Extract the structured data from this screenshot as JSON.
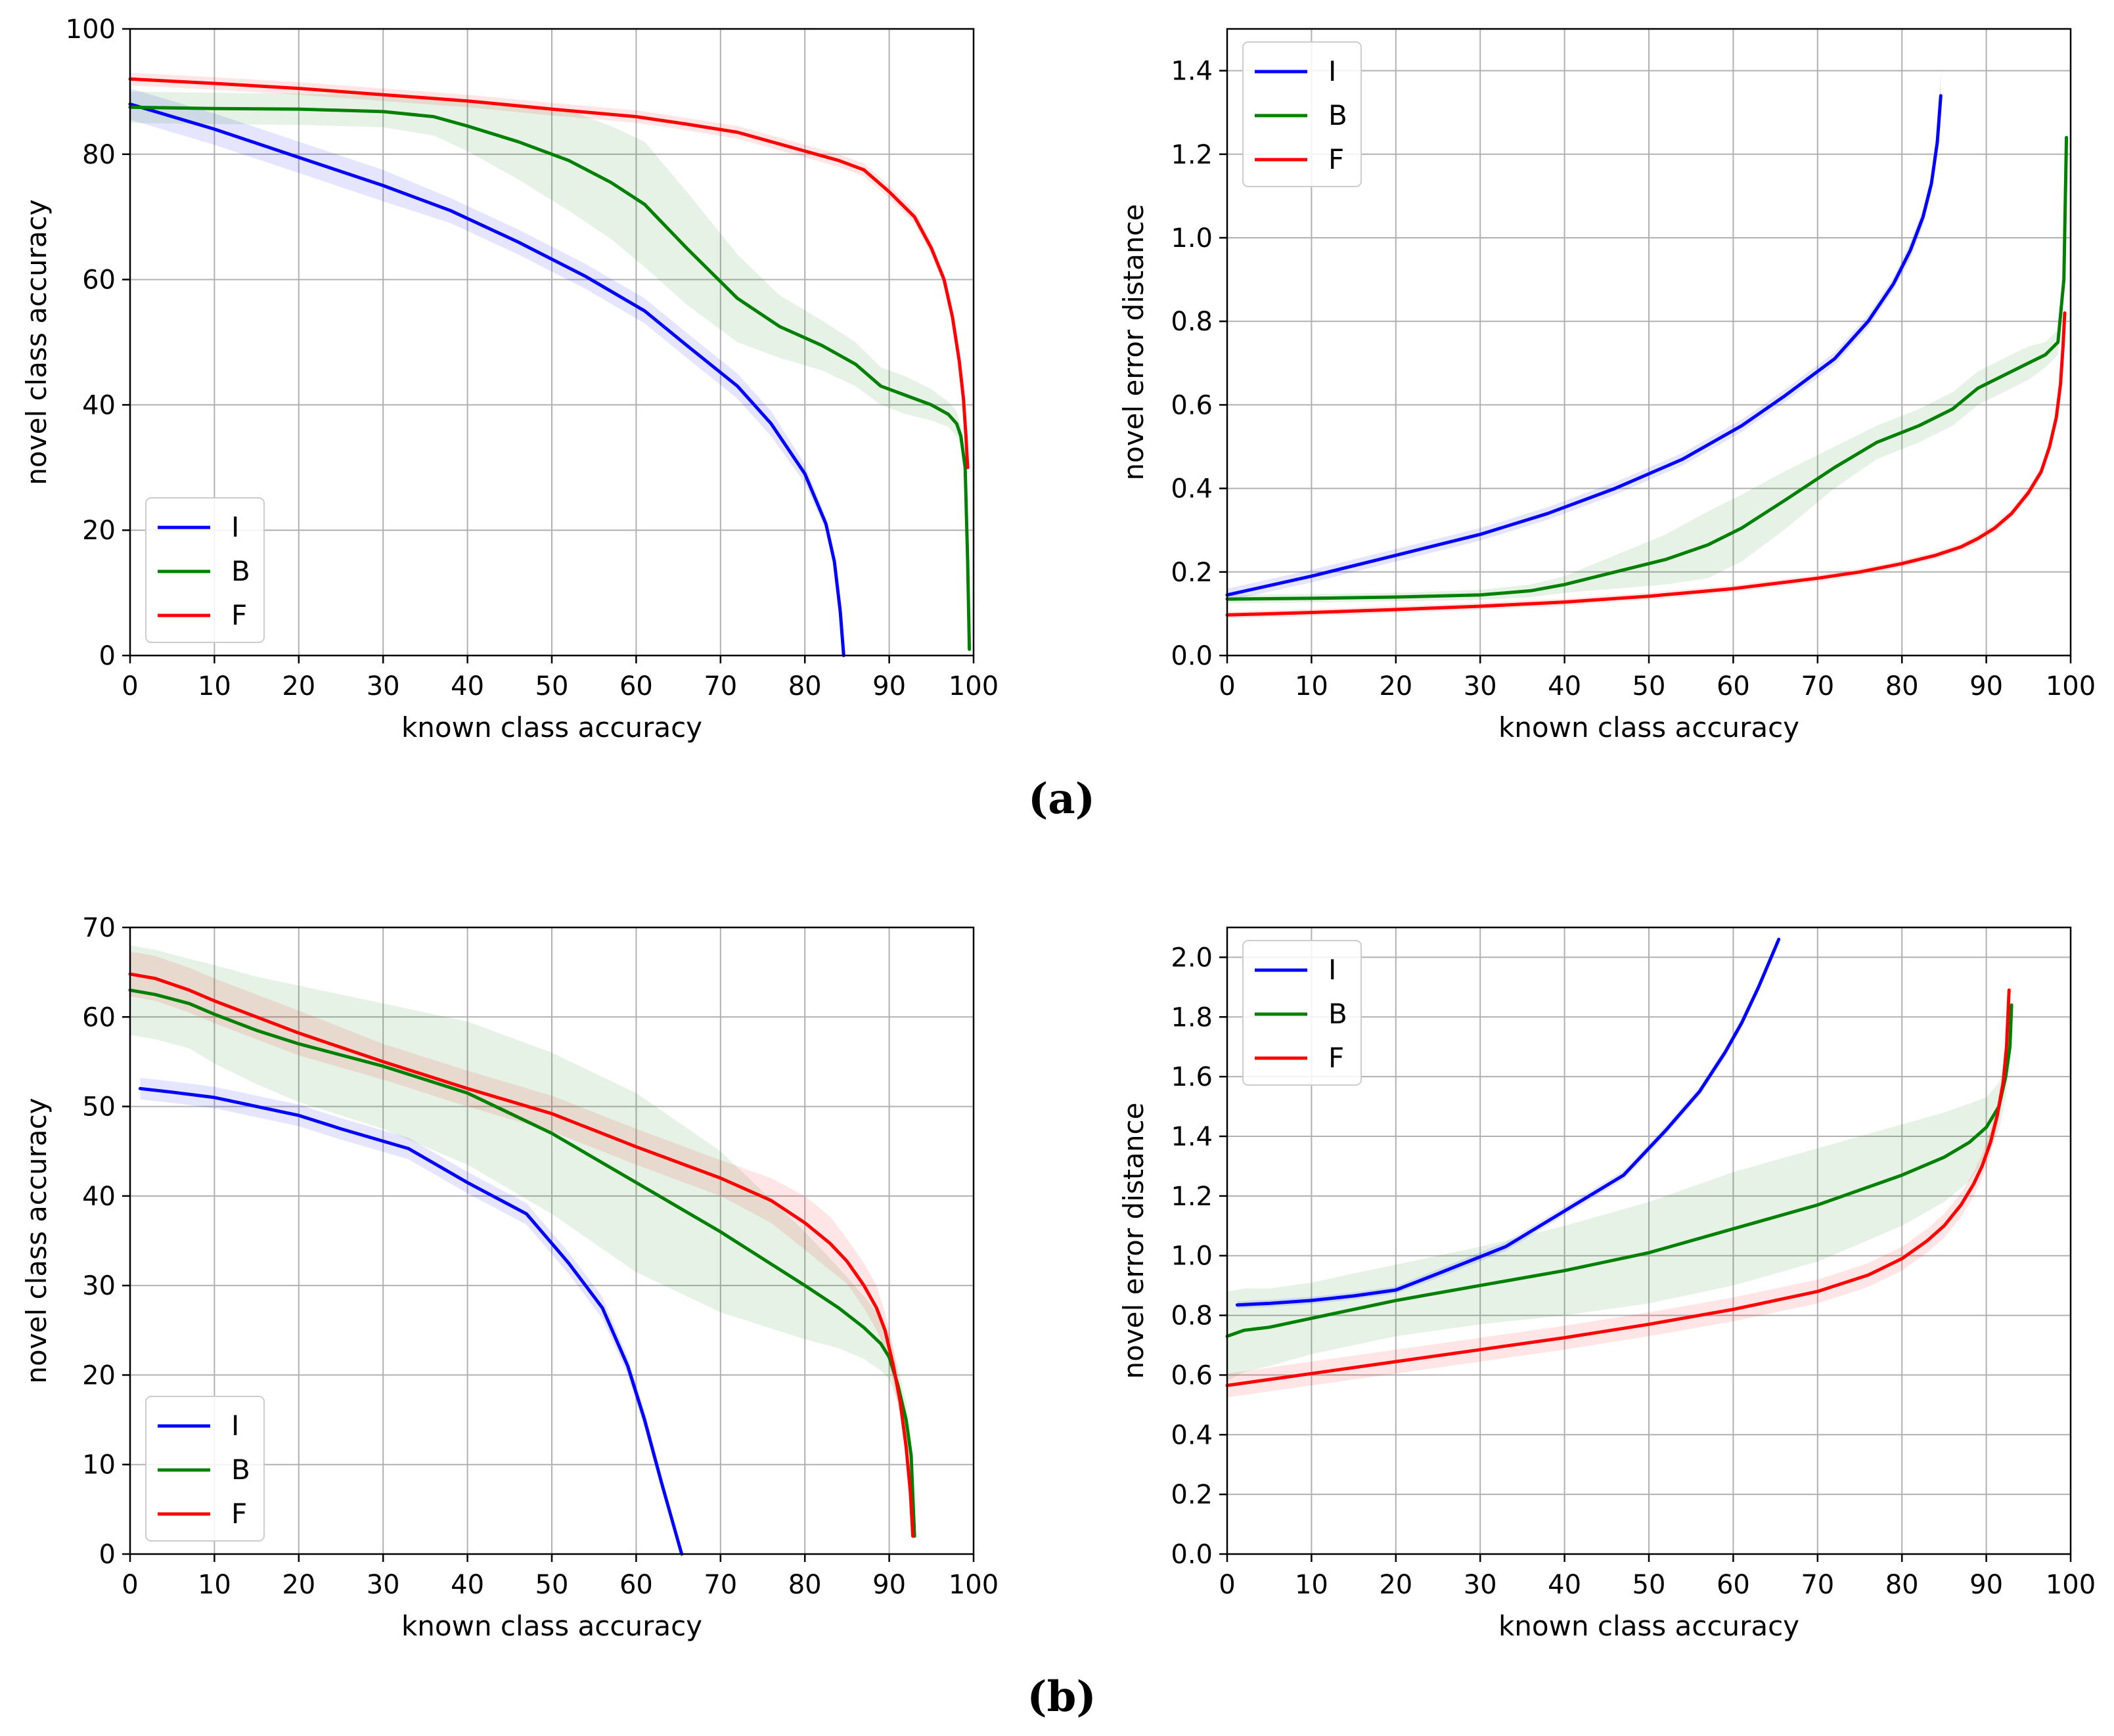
{
  "figure": {
    "caption_a": "(a)",
    "caption_b": "(b)"
  },
  "colors": {
    "I": "#0000ff",
    "B": "#008000",
    "F": "#ff0000"
  },
  "chart_data": [
    {
      "id": "a-left",
      "type": "line",
      "xlabel": "known class accuracy",
      "ylabel": "novel class accuracy",
      "xlim": [
        0,
        100
      ],
      "ylim": [
        0,
        100
      ],
      "xticks": [
        0,
        10,
        20,
        30,
        40,
        50,
        60,
        70,
        80,
        90,
        100
      ],
      "yticks": [
        0,
        20,
        40,
        60,
        80,
        100
      ],
      "ytick_decimals": 0,
      "grid": true,
      "legend_position": "bottom-left",
      "series": [
        {
          "name": "I",
          "color": "#0000ff",
          "x": [
            0,
            10,
            20,
            30,
            38,
            46,
            54,
            61,
            66,
            72,
            76,
            80,
            82.5,
            83.5,
            84.2,
            84.6
          ],
          "y": [
            88,
            84,
            79.5,
            75,
            71,
            66,
            60.5,
            55,
            49.5,
            43,
            37,
            29,
            21,
            15,
            7,
            0
          ],
          "band": [
            2.5,
            2.5,
            2.5,
            2.5,
            2,
            2,
            2,
            2,
            2,
            2,
            2,
            1.5,
            1,
            1,
            1,
            0
          ]
        },
        {
          "name": "B",
          "color": "#008000",
          "x": [
            0,
            10,
            20,
            30,
            36,
            40,
            46,
            52,
            57,
            61,
            66,
            72,
            77,
            82,
            86,
            89,
            92,
            95,
            97,
            98,
            98.5,
            99,
            99.3,
            99.5
          ],
          "y": [
            87.5,
            87.3,
            87.2,
            86.8,
            86,
            84.5,
            82,
            79,
            75.5,
            72,
            65,
            57,
            52.5,
            49.5,
            46.5,
            43,
            41.5,
            40,
            38.5,
            37,
            35,
            30,
            15,
            1
          ],
          "band": [
            2.5,
            2.5,
            2.5,
            2.5,
            3,
            4,
            6,
            8,
            9,
            10,
            9,
            7,
            5,
            4,
            3.5,
            3,
            3,
            2.5,
            2,
            2,
            1.5,
            1.5,
            1,
            0.5
          ]
        },
        {
          "name": "F",
          "color": "#ff0000",
          "x": [
            0,
            10,
            20,
            30,
            40,
            50,
            60,
            66,
            72,
            80,
            84,
            87,
            90,
            93,
            95,
            96.5,
            97.5,
            98.3,
            98.8,
            99.1,
            99.3
          ],
          "y": [
            92,
            91.3,
            90.5,
            89.5,
            88.5,
            87.2,
            86,
            84.8,
            83.5,
            80.5,
            79,
            77.5,
            74,
            70,
            65,
            60,
            54,
            47,
            41,
            35,
            30
          ],
          "band": [
            1,
            1,
            1,
            1,
            1,
            1,
            1,
            1,
            1,
            1,
            1,
            1,
            1,
            1,
            1,
            1,
            1,
            1,
            1,
            1,
            1
          ]
        }
      ]
    },
    {
      "id": "a-right",
      "type": "line",
      "xlabel": "known class accuracy",
      "ylabel": "novel error distance",
      "xlim": [
        0,
        100
      ],
      "ylim": [
        0,
        1.5
      ],
      "xticks": [
        0,
        10,
        20,
        30,
        40,
        50,
        60,
        70,
        80,
        90,
        100
      ],
      "yticks": [
        0.0,
        0.2,
        0.4,
        0.6,
        0.8,
        1.0,
        1.2,
        1.4
      ],
      "ytick_decimals": 1,
      "grid": true,
      "legend_position": "top-left",
      "series": [
        {
          "name": "I",
          "color": "#0000ff",
          "x": [
            0,
            10,
            20,
            30,
            38,
            46,
            54,
            61,
            66,
            72,
            76,
            79,
            81,
            82.5,
            83.5,
            84.2,
            84.6
          ],
          "y": [
            0.145,
            0.19,
            0.24,
            0.29,
            0.34,
            0.4,
            0.47,
            0.55,
            0.62,
            0.71,
            0.8,
            0.89,
            0.97,
            1.05,
            1.13,
            1.23,
            1.34
          ],
          "band": [
            0.015,
            0.015,
            0.015,
            0.015,
            0.015,
            0.015,
            0.015,
            0.015,
            0.015,
            0.015,
            0.015,
            0.015,
            0.02,
            0.02,
            0.02,
            0.03,
            0.06
          ]
        },
        {
          "name": "B",
          "color": "#008000",
          "x": [
            0,
            10,
            20,
            30,
            36,
            40,
            46,
            52,
            57,
            61,
            66,
            72,
            77,
            82,
            86,
            89,
            92,
            95,
            97,
            98.5,
            99.2,
            99.5
          ],
          "y": [
            0.135,
            0.137,
            0.14,
            0.145,
            0.155,
            0.17,
            0.2,
            0.23,
            0.265,
            0.305,
            0.37,
            0.45,
            0.51,
            0.55,
            0.59,
            0.64,
            0.67,
            0.7,
            0.72,
            0.75,
            0.9,
            1.24
          ],
          "band": [
            0.01,
            0.01,
            0.01,
            0.012,
            0.015,
            0.02,
            0.04,
            0.06,
            0.08,
            0.08,
            0.07,
            0.05,
            0.04,
            0.04,
            0.04,
            0.04,
            0.04,
            0.04,
            0.03,
            0.03,
            0.02,
            0.01
          ]
        },
        {
          "name": "F",
          "color": "#ff0000",
          "x": [
            0,
            10,
            20,
            30,
            40,
            50,
            60,
            70,
            75,
            80,
            84,
            87,
            89,
            91,
            93,
            95,
            96.5,
            97.5,
            98.3,
            98.8,
            99.1,
            99.3
          ],
          "y": [
            0.097,
            0.103,
            0.11,
            0.118,
            0.128,
            0.142,
            0.16,
            0.185,
            0.2,
            0.22,
            0.24,
            0.26,
            0.28,
            0.305,
            0.34,
            0.39,
            0.44,
            0.5,
            0.57,
            0.65,
            0.74,
            0.82
          ],
          "band": [
            0.008,
            0.008,
            0.008,
            0.008,
            0.008,
            0.008,
            0.008,
            0.008,
            0.008,
            0.008,
            0.008,
            0.008,
            0.01,
            0.01,
            0.01,
            0.012,
            0.012,
            0.015,
            0.015,
            0.015,
            0.015,
            0.015
          ]
        }
      ]
    },
    {
      "id": "b-left",
      "type": "line",
      "xlabel": "known class accuracy",
      "ylabel": "novel class accuracy",
      "xlim": [
        0,
        100
      ],
      "ylim": [
        0,
        70
      ],
      "xticks": [
        0,
        10,
        20,
        30,
        40,
        50,
        60,
        70,
        80,
        90,
        100
      ],
      "yticks": [
        0,
        10,
        20,
        30,
        40,
        50,
        60,
        70
      ],
      "ytick_decimals": 0,
      "grid": true,
      "legend_position": "bottom-left",
      "series": [
        {
          "name": "I",
          "color": "#0000ff",
          "x": [
            1.2,
            5,
            10,
            20,
            25,
            33,
            40,
            47,
            52,
            56,
            59,
            61,
            63,
            65.4
          ],
          "y": [
            52,
            51.6,
            51,
            49,
            47.5,
            45.3,
            41.5,
            38,
            32.5,
            27.5,
            21,
            15,
            8,
            0
          ],
          "band": [
            1.2,
            1.2,
            1.2,
            1.2,
            1.2,
            1.2,
            1.2,
            1.2,
            1.2,
            1.2,
            1,
            1,
            0.8,
            0.3
          ]
        },
        {
          "name": "B",
          "color": "#008000",
          "x": [
            0,
            3,
            7,
            10,
            15,
            20,
            30,
            40,
            50,
            60,
            70,
            80,
            84,
            87,
            89,
            90,
            91,
            92,
            92.6,
            93
          ],
          "y": [
            63,
            62.5,
            61.5,
            60.3,
            58.5,
            57,
            54.5,
            51.5,
            47,
            41.5,
            36,
            30,
            27.5,
            25.3,
            23.5,
            22,
            19,
            15,
            11,
            2
          ],
          "band": [
            5,
            5,
            5,
            5.5,
            6,
            6.5,
            7,
            8,
            9,
            10,
            9,
            6,
            4.5,
            3.5,
            3,
            2.5,
            2,
            2,
            1.5,
            0.5
          ]
        },
        {
          "name": "F",
          "color": "#ff0000",
          "x": [
            0,
            3,
            7,
            10,
            15,
            20,
            30,
            40,
            50,
            60,
            70,
            76,
            80,
            83,
            85,
            87,
            88.5,
            89.5,
            90.5,
            91.3,
            92,
            92.5,
            92.8
          ],
          "y": [
            64.8,
            64.3,
            63,
            61.8,
            60,
            58.2,
            55,
            52,
            49.2,
            45.5,
            42,
            39.5,
            37,
            34.7,
            32.7,
            30,
            27.5,
            25,
            21,
            17,
            12,
            7,
            2
          ],
          "band": [
            2.5,
            2.5,
            2.5,
            2.5,
            2.5,
            2.5,
            2,
            2,
            2,
            2,
            2,
            2.5,
            3,
            3,
            2.5,
            2.5,
            2.5,
            2,
            2,
            1.5,
            1.2,
            0.8,
            0.3
          ]
        }
      ]
    },
    {
      "id": "b-right",
      "type": "line",
      "xlabel": "known class accuracy",
      "ylabel": "novel error distance",
      "xlim": [
        0,
        100
      ],
      "ylim": [
        0,
        2.1
      ],
      "xticks": [
        0,
        10,
        20,
        30,
        40,
        50,
        60,
        70,
        80,
        90,
        100
      ],
      "yticks": [
        0.0,
        0.2,
        0.4,
        0.6,
        0.8,
        1.0,
        1.2,
        1.4,
        1.6,
        1.8,
        2.0
      ],
      "ytick_decimals": 1,
      "grid": true,
      "legend_position": "top-left",
      "series": [
        {
          "name": "I",
          "color": "#0000ff",
          "x": [
            1.2,
            5,
            10,
            15,
            20,
            25,
            33,
            40,
            47,
            52,
            56,
            59,
            61,
            63,
            65.4
          ],
          "y": [
            0.835,
            0.84,
            0.85,
            0.865,
            0.885,
            0.94,
            1.03,
            1.15,
            1.27,
            1.42,
            1.55,
            1.68,
            1.78,
            1.9,
            2.06
          ],
          "band": [
            0.012,
            0.012,
            0.012,
            0.012,
            0.012,
            0.015,
            0.015,
            0.015,
            0.015,
            0.015,
            0.015,
            0.015,
            0.015,
            0.015,
            0.015
          ]
        },
        {
          "name": "B",
          "color": "#008000",
          "x": [
            0,
            2,
            5,
            10,
            20,
            30,
            40,
            50,
            60,
            70,
            80,
            85,
            88,
            90,
            91.5,
            92.3,
            92.8,
            93
          ],
          "y": [
            0.73,
            0.75,
            0.76,
            0.79,
            0.85,
            0.9,
            0.95,
            1.01,
            1.09,
            1.17,
            1.27,
            1.33,
            1.38,
            1.43,
            1.5,
            1.6,
            1.7,
            1.84
          ],
          "band": [
            0.15,
            0.14,
            0.13,
            0.12,
            0.12,
            0.13,
            0.15,
            0.17,
            0.19,
            0.19,
            0.17,
            0.15,
            0.13,
            0.1,
            0.08,
            0.07,
            0.06,
            0.04
          ]
        },
        {
          "name": "F",
          "color": "#ff0000",
          "x": [
            0,
            10,
            20,
            30,
            40,
            50,
            60,
            70,
            76,
            80,
            83,
            85,
            87,
            88.5,
            89.5,
            90.5,
            91.3,
            92,
            92.4,
            92.7
          ],
          "y": [
            0.565,
            0.605,
            0.645,
            0.685,
            0.725,
            0.77,
            0.82,
            0.88,
            0.935,
            0.99,
            1.05,
            1.1,
            1.17,
            1.24,
            1.3,
            1.38,
            1.47,
            1.58,
            1.7,
            1.89
          ],
          "band": [
            0.04,
            0.04,
            0.04,
            0.04,
            0.04,
            0.04,
            0.04,
            0.04,
            0.04,
            0.04,
            0.04,
            0.04,
            0.04,
            0.04,
            0.04,
            0.04,
            0.04,
            0.04,
            0.05,
            0.05
          ]
        }
      ]
    }
  ]
}
